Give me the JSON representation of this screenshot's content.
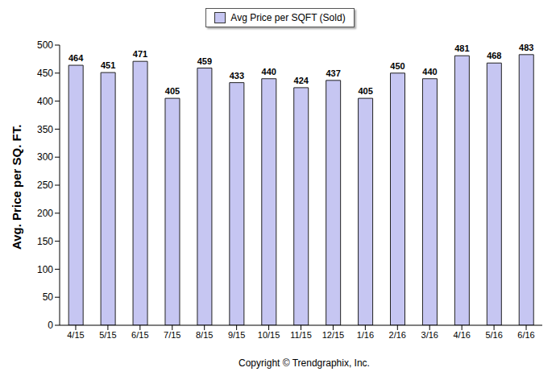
{
  "chart_data": {
    "type": "bar",
    "categories": [
      "4/15",
      "5/15",
      "6/15",
      "7/15",
      "8/15",
      "9/15",
      "10/15",
      "11/15",
      "12/15",
      "1/16",
      "2/16",
      "3/16",
      "4/16",
      "5/16",
      "6/16"
    ],
    "series": [
      {
        "name": "Avg Price per SQFT (Sold)",
        "color": "#c6c6f2",
        "values": [
          464,
          451,
          471,
          405,
          459,
          433,
          440,
          424,
          437,
          405,
          450,
          440,
          481,
          468,
          483
        ]
      }
    ],
    "y_label": "Avg. Price per SQ. FT.",
    "ylim": [
      0,
      500
    ],
    "yticks": [
      0,
      50,
      100,
      150,
      200,
      250,
      300,
      350,
      400,
      450,
      500
    ],
    "legend": "top",
    "data_labels": true,
    "grid": false,
    "annotations": [
      "Copyright © Trendgraphix, Inc."
    ]
  }
}
